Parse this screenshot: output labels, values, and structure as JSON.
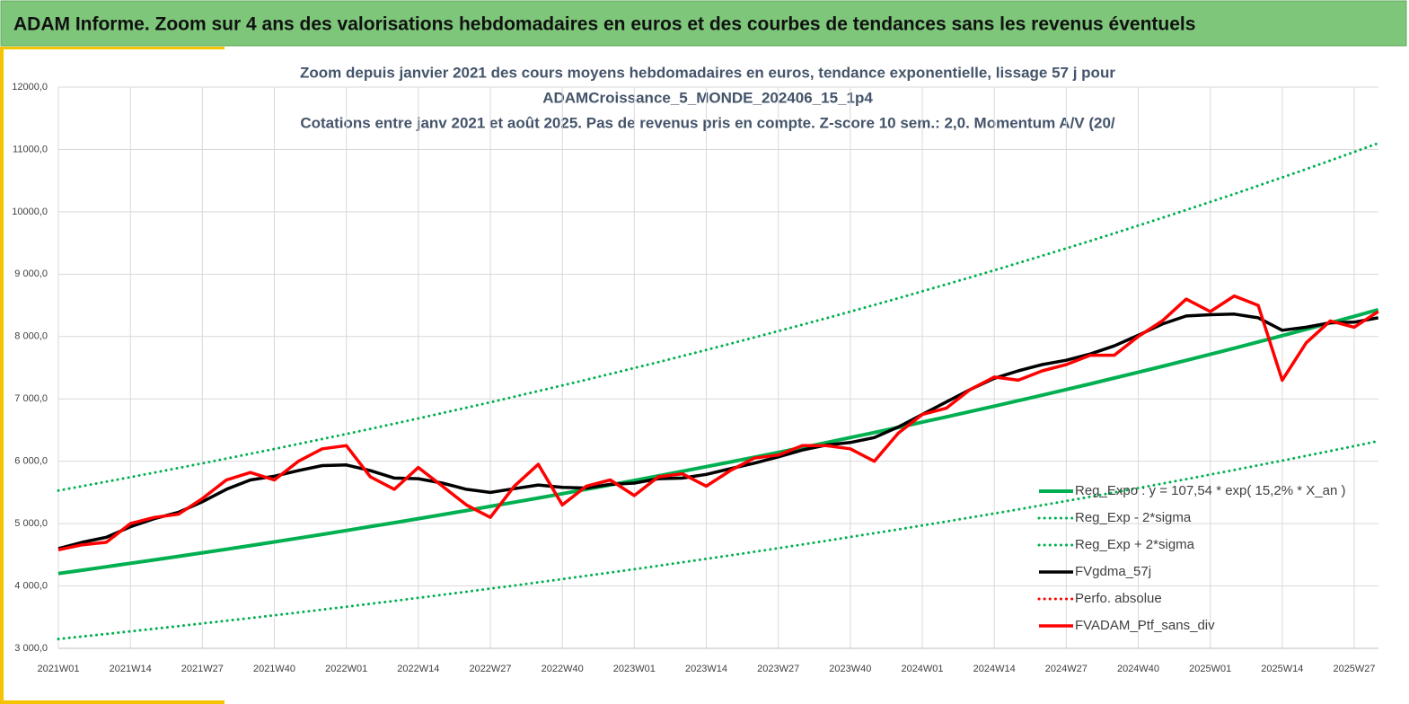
{
  "header": {
    "title": "ADAM Informe. Zoom sur 4 ans des valorisations hebdomadaires en euros et des courbes de tendances sans les revenus éventuels"
  },
  "chart_data": {
    "type": "line",
    "title": [
      "Zoom depuis janvier 2021 des cours moyens hebdomadaires  en euros, tendance exponentielle, lissage 57 j pour",
      "ADAMCroissance_5_MONDE_202406_15_1p4",
      "Cotations entre janv 2021 et août 2025. Pas de revenus pris en compte. Z-score 10 sem.: 2,0. Momentum A/V (20/"
    ],
    "categories": [
      "2021W01",
      null,
      null,
      "2021W14",
      null,
      null,
      "2021W27",
      null,
      null,
      "2021W40",
      null,
      null,
      "2022W01",
      null,
      null,
      "2022W14",
      null,
      null,
      "2022W27",
      null,
      null,
      "2022W40",
      null,
      null,
      "2023W01",
      null,
      null,
      "2023W14",
      null,
      null,
      "2023W27",
      null,
      null,
      "2023W40",
      null,
      null,
      "2024W01",
      null,
      null,
      "2024W14",
      null,
      null,
      "2024W27",
      null,
      null,
      "2024W40",
      null,
      null,
      "2025W01",
      null,
      null,
      "2025W14",
      null,
      null,
      "2025W27",
      null
    ],
    "ylim": [
      3000,
      12000
    ],
    "yticks": [
      {
        "value": 3000,
        "label": "3 000,0"
      },
      {
        "value": 4000,
        "label": "4 000,0"
      },
      {
        "value": 5000,
        "label": "5 000,0"
      },
      {
        "value": 6000,
        "label": "6 000,0"
      },
      {
        "value": 7000,
        "label": "7 000,0"
      },
      {
        "value": 8000,
        "label": "8 000,0"
      },
      {
        "value": 9000,
        "label": "9 000,0"
      },
      {
        "value": 10000,
        "label": "10000,0"
      },
      {
        "value": 11000,
        "label": "11000,0"
      },
      {
        "value": 12000,
        "label": "12000,0"
      }
    ],
    "grid": true,
    "legend": "bottom-right",
    "series": [
      {
        "name": "Reg_Expo : y = 107,54 * exp( 15,2% *  X_an )",
        "color": "#00b050",
        "dash": "solid",
        "width": 4,
        "values": [
          4200,
          4253,
          4308,
          4363,
          4418,
          4475,
          4532,
          4589,
          4648,
          4707,
          4767,
          4828,
          4890,
          4952,
          5015,
          5079,
          5144,
          5209,
          5276,
          5343,
          5411,
          5480,
          5550,
          5621,
          5692,
          5765,
          5838,
          5913,
          5988,
          6064,
          6142,
          6220,
          6299,
          6380,
          6461,
          6543,
          6627,
          6711,
          6797,
          6883,
          6971,
          7060,
          7150,
          7241,
          7334,
          7427,
          7522,
          7618,
          7715,
          7813,
          7913,
          8014,
          8116,
          8219,
          8324,
          8430
        ]
      },
      {
        "name": "Reg_Exp - 2*sigma",
        "color": "#00b050",
        "dash": "dotted",
        "width": 3,
        "values": [
          3150,
          3190,
          3231,
          3272,
          3314,
          3356,
          3399,
          3442,
          3486,
          3530,
          3575,
          3621,
          3667,
          3714,
          3761,
          3809,
          3858,
          3907,
          3957,
          4007,
          4058,
          4110,
          4163,
          4216,
          4269,
          4324,
          4379,
          4435,
          4491,
          4548,
          4606,
          4665,
          4724,
          4785,
          4846,
          4907,
          4970,
          5034,
          5098,
          5163,
          5228,
          5295,
          5363,
          5431,
          5500,
          5570,
          5641,
          5713,
          5786,
          5860,
          5935,
          6010,
          6087,
          6165,
          6243,
          6323
        ]
      },
      {
        "name": "Reg_Exp + 2*sigma",
        "color": "#00b050",
        "dash": "dotted",
        "width": 3,
        "values": [
          5530,
          5600,
          5672,
          5744,
          5818,
          5892,
          5967,
          6043,
          6120,
          6197,
          6277,
          6357,
          6438,
          6520,
          6603,
          6687,
          6773,
          6859,
          6946,
          7035,
          7125,
          7216,
          7307,
          7401,
          7495,
          7590,
          7687,
          7785,
          7885,
          7985,
          8087,
          8190,
          8294,
          8400,
          8507,
          8615,
          8725,
          8836,
          8949,
          9063,
          9179,
          9296,
          9414,
          9534,
          9656,
          9779,
          9904,
          10030,
          10158,
          10287,
          10419,
          10551,
          10686,
          10822,
          10960,
          11100
        ]
      },
      {
        "name": "FVgdma_57j",
        "color": "#000000",
        "dash": "solid",
        "width": 3.5,
        "values": [
          4600,
          4700,
          4780,
          4950,
          5080,
          5180,
          5350,
          5550,
          5700,
          5760,
          5850,
          5930,
          5940,
          5850,
          5730,
          5720,
          5650,
          5550,
          5500,
          5560,
          5620,
          5580,
          5570,
          5630,
          5650,
          5720,
          5730,
          5790,
          5880,
          5970,
          6070,
          6180,
          6260,
          6300,
          6380,
          6550,
          6750,
          6950,
          7150,
          7330,
          7450,
          7550,
          7620,
          7720,
          7850,
          8020,
          8200,
          8330,
          8350,
          8360,
          8300,
          8100,
          8150,
          8220,
          8230,
          8300
        ]
      },
      {
        "name": "Perfo. absolue",
        "color": "#ff0000",
        "dash": "dotted",
        "width": 3
      },
      {
        "name": "FVADAM_Ptf_sans_div",
        "color": "#ff0000",
        "dash": "solid",
        "width": 3.5,
        "values": [
          4580,
          4660,
          4700,
          5000,
          5100,
          5150,
          5400,
          5700,
          5820,
          5700,
          6000,
          6200,
          6250,
          5750,
          5550,
          5900,
          5600,
          5300,
          5100,
          5600,
          5950,
          5300,
          5600,
          5700,
          5450,
          5750,
          5800,
          5600,
          5850,
          6050,
          6100,
          6250,
          6250,
          6200,
          6000,
          6450,
          6750,
          6850,
          7150,
          7350,
          7300,
          7450,
          7550,
          7700,
          7700,
          8000,
          8250,
          8600,
          8400,
          8650,
          8500,
          7300,
          7900,
          8250,
          8150,
          8400
        ]
      }
    ]
  }
}
